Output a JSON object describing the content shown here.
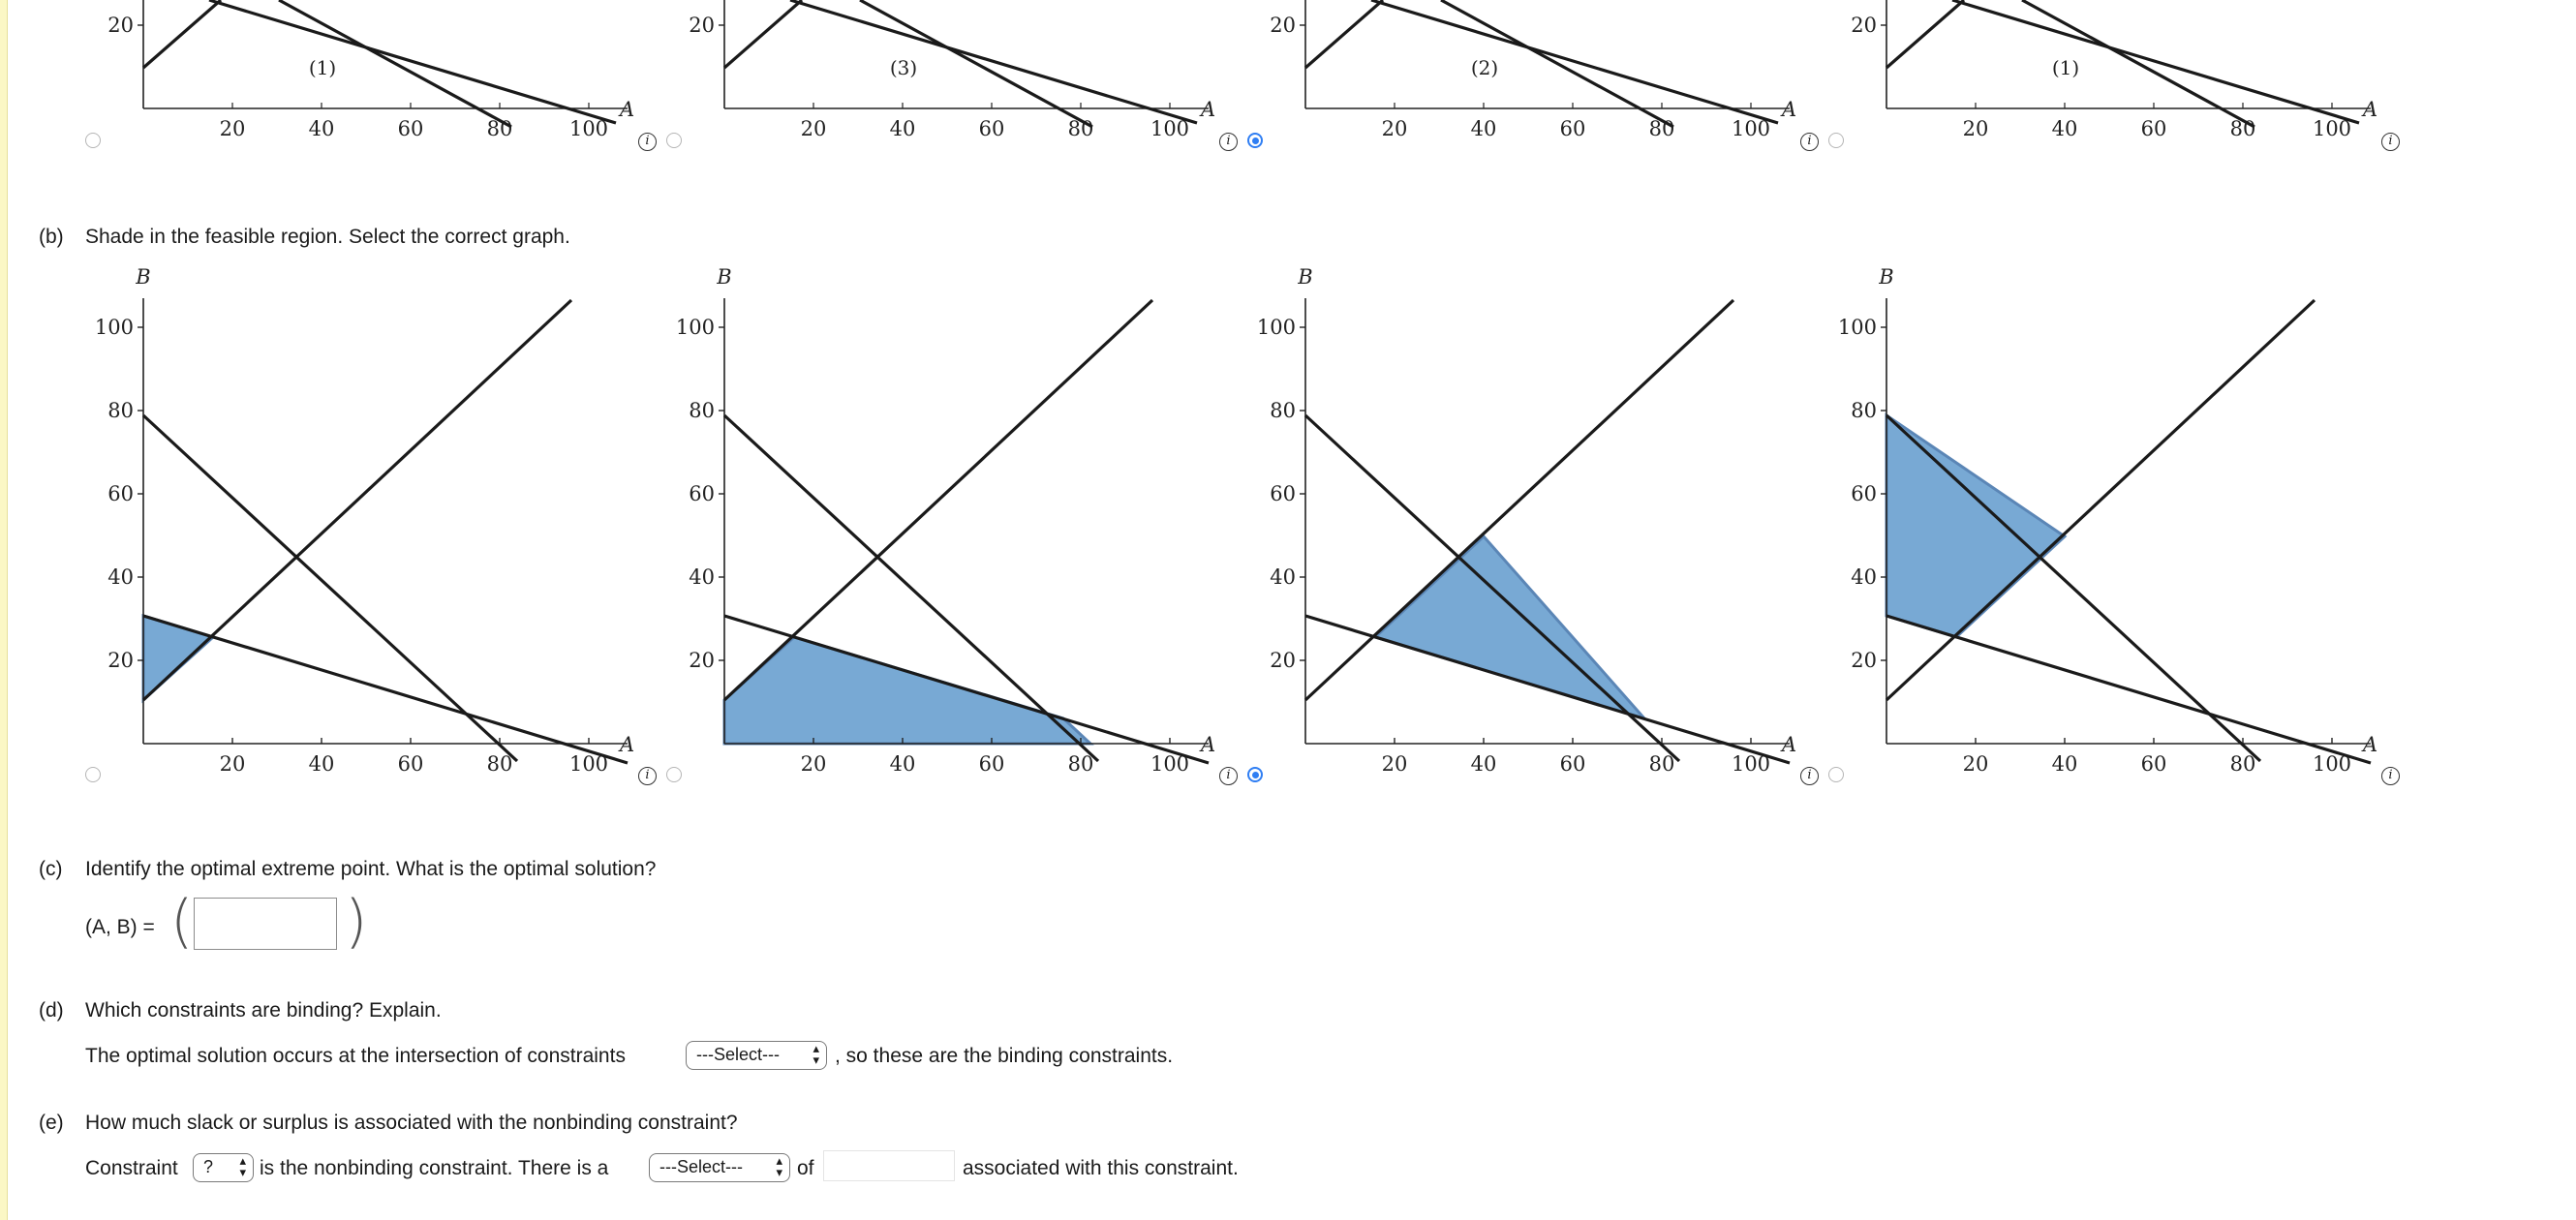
{
  "part_a": {
    "region_labels": [
      "(1)",
      "(3)",
      "(2)",
      "(1)"
    ],
    "selected_index": 1,
    "axis": {
      "y_ticks": [
        "20"
      ],
      "x_ticks": [
        "20",
        "40",
        "60",
        "80",
        "100"
      ],
      "x_label": "A"
    }
  },
  "part_b": {
    "letter": "(b)",
    "question": "Shade in the feasible region. Select the correct graph.",
    "selected_index": 1,
    "axis": {
      "y_label": "B",
      "x_label": "A",
      "y_ticks": [
        "20",
        "40",
        "60",
        "80",
        "100"
      ],
      "x_ticks": [
        "20",
        "40",
        "60",
        "80",
        "100"
      ]
    }
  },
  "part_c": {
    "letter": "(c)",
    "question": "Identify the optimal extreme point. What is the optimal solution?",
    "prefix": "(A, B) =",
    "value": ""
  },
  "part_d": {
    "letter": "(d)",
    "question": "Which constraints are binding? Explain.",
    "sentence_before": "The optimal solution occurs at the intersection of constraints",
    "select_value": "---Select---",
    "sentence_after": ", so these are the binding constraints."
  },
  "part_e": {
    "letter": "(e)",
    "question": "How much slack or surplus is associated with the nonbinding constraint?",
    "word_constraint": "Constraint",
    "constraint_select": "?",
    "text_mid": "is the nonbinding constraint. There is a",
    "type_select": "---Select---",
    "word_of": "of",
    "amount_value": "",
    "text_end": "associated with this constraint."
  },
  "colors": {
    "accent": "#2f7ef3",
    "shade_fill": "#78a9d4",
    "shade_stroke": "#5b86b6",
    "left_bar": "#fbf7c5"
  },
  "info_glyph": "i"
}
